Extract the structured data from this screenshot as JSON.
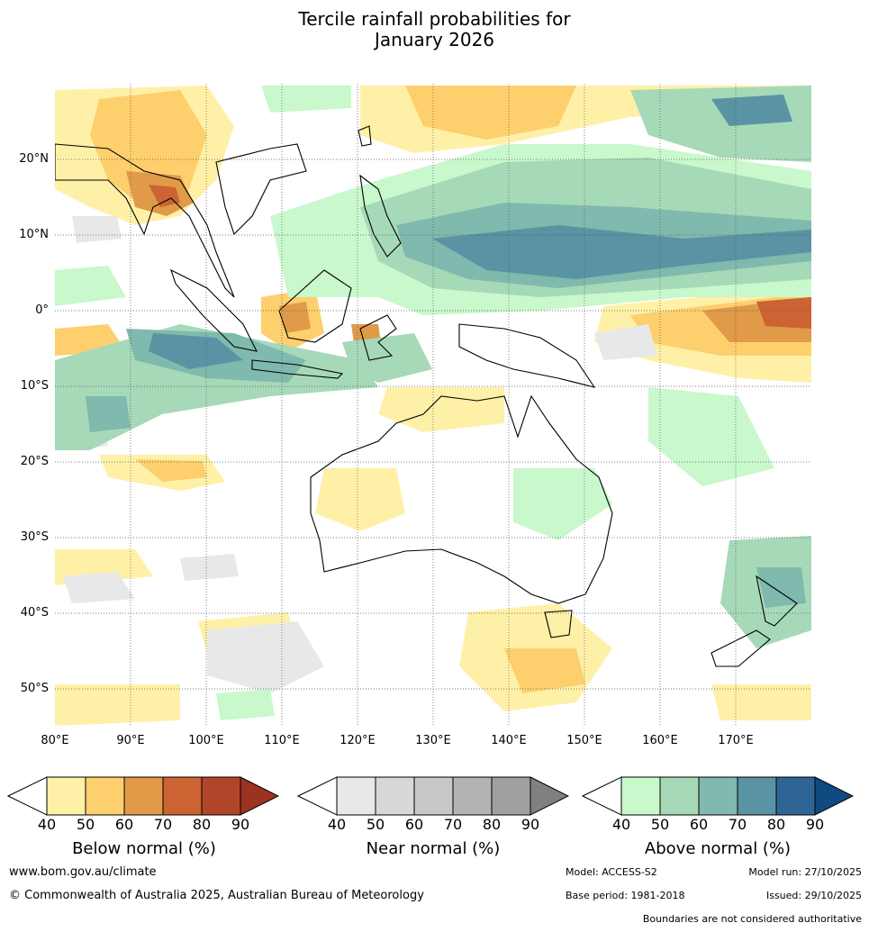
{
  "title": {
    "line1": "Tercile rainfall probabilities for",
    "line2": "January 2026"
  },
  "map": {
    "lat_labels": [
      "20°N",
      "10°N",
      "0°",
      "10°S",
      "20°S",
      "30°S",
      "40°S",
      "50°S"
    ],
    "lon_labels": [
      "80°E",
      "90°E",
      "100°E",
      "110°E",
      "120°E",
      "130°E",
      "140°E",
      "150°E",
      "160°E",
      "170°E"
    ]
  },
  "colorbars": {
    "below": {
      "title": "Below normal (%)",
      "ticks": [
        "40",
        "50",
        "60",
        "70",
        "80",
        "90"
      ],
      "colors": [
        "#fff0a8",
        "#fdcf6d",
        "#e09a48",
        "#cc6332",
        "#b0452a",
        "#9c3220"
      ]
    },
    "near": {
      "title": "Near normal (%)",
      "ticks": [
        "40",
        "50",
        "60",
        "70",
        "80",
        "90"
      ],
      "colors": [
        "#e8e8e8",
        "#d8d8d8",
        "#c8c8c8",
        "#b4b4b4",
        "#a0a0a0",
        "#808080"
      ]
    },
    "above": {
      "title": "Above normal (%)",
      "ticks": [
        "40",
        "50",
        "60",
        "70",
        "80",
        "90"
      ],
      "colors": [
        "#c8f8cc",
        "#a6d9b8",
        "#80b9ad",
        "#5a93a3",
        "#2f6595",
        "#0f4a80"
      ]
    }
  },
  "footer": {
    "website": "www.bom.gov.au/climate",
    "copyright": "© Commonwealth of Australia 2025, Australian Bureau of Meteorology",
    "model": "Model: ACCESS-S2",
    "model_run": "Model run: 27/10/2025",
    "base_period": "Base period: 1981-2018",
    "issued": "Issued: 29/10/2025",
    "disclaimer": "Boundaries are not considered authoritative"
  }
}
